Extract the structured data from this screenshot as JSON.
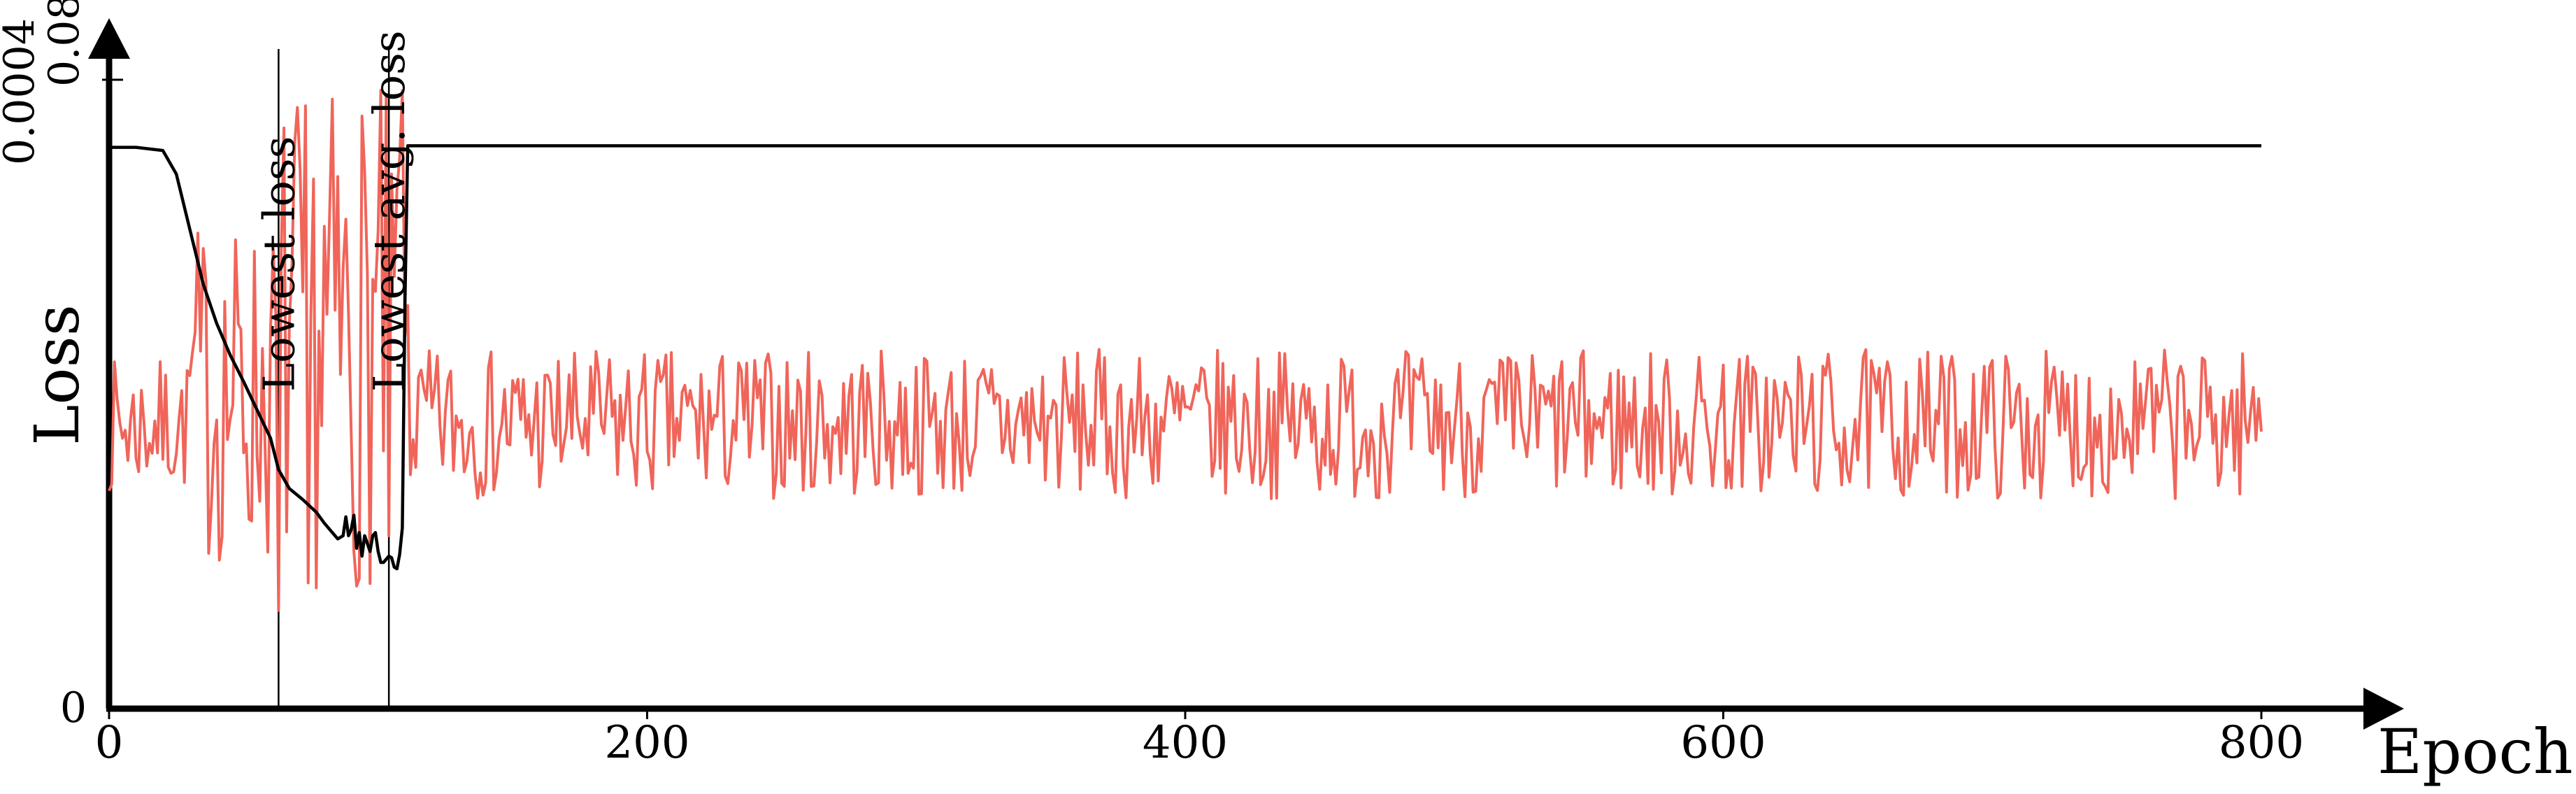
{
  "chart_data": {
    "type": "line",
    "xlabel": "Epoch",
    "ylabel": "Loss",
    "xlim": [
      0,
      870
    ],
    "x_ticks": [
      {
        "value": 0,
        "label": "0"
      },
      {
        "value": 200,
        "label": "200"
      },
      {
        "value": 400,
        "label": "400"
      },
      {
        "value": 600,
        "label": "600"
      },
      {
        "value": 800,
        "label": "800"
      }
    ],
    "y_axes": [
      {
        "id": "black",
        "max": 0.0004,
        "top_label": "0.0004",
        "color": "#000000"
      },
      {
        "id": "red",
        "max": 0.08,
        "top_label": "0.08",
        "color": "#f0655a"
      }
    ],
    "y_zero_label": "0",
    "series": [
      {
        "axis": "black",
        "color": "#000000",
        "points": [
          [
            0,
            0.000357
          ],
          [
            10,
            0.000357
          ],
          [
            20,
            0.000355
          ],
          [
            25,
            0.00034
          ],
          [
            30,
            0.000305
          ],
          [
            35,
            0.00027
          ],
          [
            40,
            0.000245
          ],
          [
            45,
            0.000225
          ],
          [
            50,
            0.000208
          ],
          [
            55,
            0.00019
          ],
          [
            60,
            0.000172
          ],
          [
            63,
            0.000152
          ],
          [
            67,
            0.00014
          ],
          [
            72,
            0.000133
          ],
          [
            77,
            0.000125
          ],
          [
            80,
            0.000118
          ],
          [
            83,
            0.000112
          ],
          [
            85,
            0.000108
          ],
          [
            87,
            0.00011
          ],
          [
            88,
            0.000122
          ],
          [
            89,
            0.00011
          ],
          [
            90,
            0.000114
          ],
          [
            91,
            0.000123
          ],
          [
            92,
            0.000102
          ],
          [
            93,
            0.000112
          ],
          [
            94,
            9.7e-05
          ],
          [
            95,
            0.00011
          ],
          [
            96,
            0.000105
          ],
          [
            97,
            0.0001
          ],
          [
            98,
            0.00011
          ],
          [
            99,
            0.000112
          ],
          [
            100,
            0.0001
          ],
          [
            101,
            9.3e-05
          ],
          [
            102,
            9.3e-05
          ],
          [
            103,
            9.5e-05
          ],
          [
            104,
            9.7e-05
          ],
          [
            105,
            9.6e-05
          ],
          [
            106,
            9e-05
          ],
          [
            107,
            8.9e-05
          ],
          [
            108,
            9.8e-05
          ],
          [
            109,
            0.000115
          ],
          [
            110,
            0.00026
          ],
          [
            111,
            0.000358
          ],
          [
            130,
            0.000358
          ],
          [
            200,
            0.000358
          ],
          [
            400,
            0.000358
          ],
          [
            600,
            0.000358
          ],
          [
            800,
            0.000358
          ]
        ]
      },
      {
        "axis": "red",
        "color": "#f0655a",
        "seed": 7,
        "range": [
          0,
          800
        ],
        "step": 1,
        "phases": [
          {
            "from": 0,
            "to": 30,
            "mean": 0.036,
            "amp": 0.0085
          },
          {
            "from": 30,
            "to": 62,
            "mean": 0.04,
            "amp": 0.022
          },
          {
            "from": 62,
            "to": 112,
            "mean": 0.047,
            "amp": 0.032
          },
          {
            "from": 112,
            "to": 801,
            "mean": 0.0362,
            "amp": 0.0095
          }
        ],
        "spikes": [
          [
            63,
            0.0125
          ],
          [
            64,
            0.058
          ],
          [
            74,
            0.016
          ],
          [
            91,
            0.02
          ],
          [
            104,
            0.022
          ],
          [
            105,
            0.068
          ],
          [
            107,
            0.066
          ],
          [
            108,
            0.07
          ]
        ]
      }
    ],
    "vlines": [
      {
        "x": 63,
        "label": "Lowest loss"
      },
      {
        "x": 104,
        "label": "Lowest avg. loss"
      }
    ]
  }
}
